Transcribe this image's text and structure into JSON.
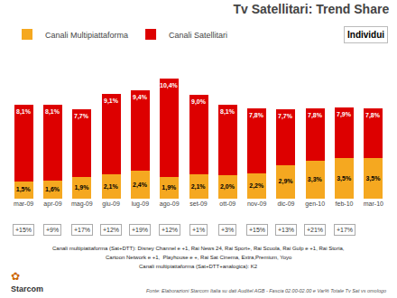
{
  "chart_data": {
    "type": "bar",
    "stacked": true,
    "title": "Tv Satellitari: Trend Share",
    "subtitle": "Individui",
    "categories": [
      "mar-09",
      "apr-09",
      "mag-09",
      "giu-09",
      "lug-09",
      "ago-09",
      "set-09",
      "ott-09",
      "nov-09",
      "dic-09",
      "gen-10",
      "feb-10",
      "mar-10"
    ],
    "series": [
      {
        "name": "Canali Multipiattaforma",
        "color": "#F5A820",
        "values": [
          1.5,
          1.6,
          1.9,
          2.1,
          2.4,
          1.9,
          2.1,
          2.0,
          2.2,
          2.9,
          3.3,
          3.5,
          3.5
        ],
        "value_labels": [
          "1,5%",
          "1,6%",
          "1,9%",
          "2,1%",
          "2,4%",
          "1,9%",
          "2,1%",
          "2,0%",
          "2,2%",
          "2,9%",
          "3,3%",
          "3,5%",
          "3,5%"
        ]
      },
      {
        "name": "Canali Satellitari",
        "color": "#DD0000",
        "values": [
          6.6,
          6.5,
          5.8,
          7.0,
          7.0,
          8.5,
          6.9,
          6.1,
          5.6,
          4.8,
          4.5,
          4.4,
          4.3
        ]
      }
    ],
    "totals": [
      8.1,
      8.1,
      7.7,
      9.1,
      9.4,
      10.4,
      9.0,
      8.1,
      7.8,
      7.7,
      7.8,
      7.9,
      7.8
    ],
    "total_labels": [
      "8,1%",
      "8,1%",
      "7,7%",
      "9,1%",
      "9,4%",
      "10,4%",
      "9,0%",
      "8,1%",
      "7,8%",
      "7,7%",
      "7,8%",
      "7,9%",
      "7,8%"
    ],
    "changes": [
      15,
      9,
      17,
      12,
      19,
      12,
      1,
      3,
      15,
      13,
      21,
      17,
      null
    ],
    "change_labels": [
      "+15%",
      "+9%",
      "+17%",
      "+12%",
      "+19%",
      "+12%",
      "+1%",
      "+3%",
      "+15%",
      "+13%",
      "+21%",
      "+17%",
      null
    ],
    "notes": [
      "Canali multipiattaforma (Sat+DTT): Disney Channel e +1, Rai News 24, Rai Sport+, Rai Scuola, Rai Gulp e +1, Rai Storia,",
      "Cartoon Network e +1,  Playhouse e +, Rai Sat Cinema, Extra,Premium, Yoyo",
      "Canali multipiattaforma (Sat+DTT+analogica): K2"
    ],
    "annotations": [
      "✿",
      "Starcom",
      "Fonte: Elaborazioni Starcom Italia su dati Auditel AGB - Fascia 02.00-02.00 e Var% Totale Tv Sat vs omologo"
    ],
    "ylim": [
      0,
      12.5
    ],
    "data_labels": true,
    "legend": "upper left",
    "grid": false,
    "tick_labels": "x"
  }
}
